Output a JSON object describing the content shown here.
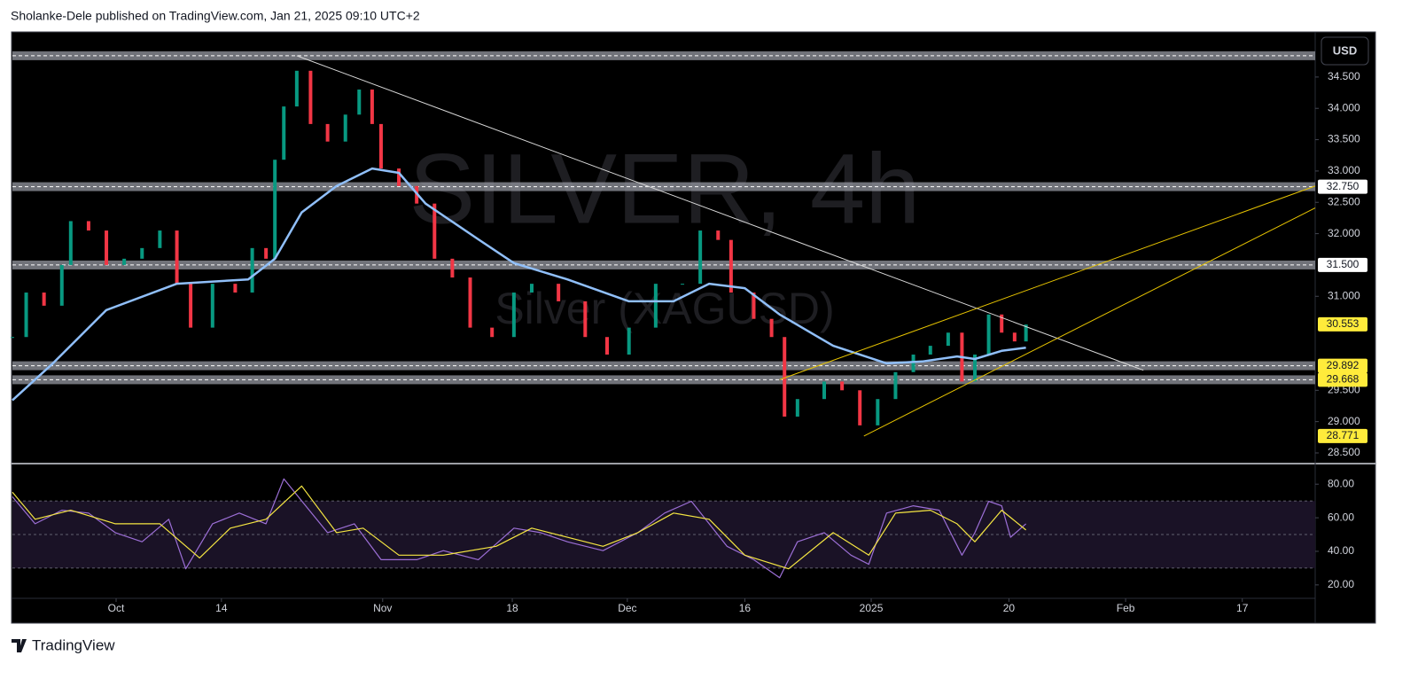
{
  "header": {
    "text": "Sholanke-Dele published on TradingView.com, Jan 21, 2025 09:10 UTC+2"
  },
  "footer": {
    "text": "TradingView"
  },
  "chart_data": [
    {
      "type": "candlestick",
      "title": "SILVER, 4h",
      "subtitle": "Silver (XAGUSD)",
      "currency": "USD",
      "x": [
        -12.8,
        -11.1,
        -8.9,
        -6.7,
        -5.6,
        -3.4,
        -1.2,
        1.0,
        3.2,
        5.4,
        7.5,
        9.2,
        11.9,
        14.7,
        16.8,
        18.5,
        19.6,
        20.7,
        22.3,
        24.0,
        26.1,
        28.3,
        30.0,
        31.6,
        32.7,
        34.9,
        37.1,
        39.3,
        41.5,
        43.7,
        46.4,
        49.1,
        51.3,
        54.6,
        57.9,
        60.6,
        63.3,
        66.6,
        69.9,
        72.1,
        74.3,
        75.9,
        78.7,
        80.9,
        82.5,
        84.1,
        87.4,
        89.6,
        91.8,
        94.0,
        96.2,
        98.4,
        100.5,
        102.7,
        104.4,
        106.0,
        107.7,
        109.3,
        110.9,
        112.3
      ],
      "values": [
        30.35,
        31.06,
        30.85,
        31.5,
        32.2,
        32.05,
        31.5,
        31.6,
        31.77,
        32.05,
        31.2,
        30.5,
        31.2,
        31.06,
        31.77,
        31.6,
        33.18,
        34.03,
        34.6,
        33.75,
        33.47,
        33.9,
        34.3,
        33.75,
        33.04,
        32.76,
        32.48,
        31.6,
        31.3,
        30.5,
        30.35,
        31.06,
        31.2,
        30.92,
        30.35,
        30.07,
        30.5,
        31.2,
        31.2,
        32.05,
        31.9,
        31.06,
        30.64,
        30.35,
        29.08,
        29.36,
        29.64,
        29.5,
        28.94,
        29.36,
        29.79,
        30.07,
        30.21,
        30.42,
        29.64,
        30.07,
        30.71,
        30.42,
        30.28,
        30.55
      ],
      "up_color": "#089981",
      "down_color": "#f23645",
      "series": [
        {
          "color": "#90bff9",
          "x": [
            -12.8,
            -7.8,
            -1.2,
            7.5,
            16.3,
            19.6,
            22.9,
            27.2,
            31.6,
            34.9,
            38.2,
            44.7,
            49.1,
            55.7,
            63.3,
            68.8,
            73.2,
            77.6,
            81.9,
            88.5,
            95.1,
            99.5,
            103.8,
            106.0,
            109.3,
            112.3
          ],
          "values": [
            29.34,
            29.93,
            30.78,
            31.2,
            31.27,
            31.6,
            32.34,
            32.76,
            33.04,
            32.97,
            32.48,
            31.91,
            31.53,
            31.27,
            30.92,
            30.92,
            31.2,
            31.13,
            30.71,
            30.21,
            29.93,
            29.96,
            30.04,
            30.0,
            30.13,
            30.18
          ]
        }
      ],
      "trendlines": [
        {
          "color": "#d9d9d9",
          "x": [
            22.3,
            126.8
          ],
          "values": [
            34.84,
            29.82
          ]
        },
        {
          "color": "#e6c300",
          "x": [
            81.9,
            148
          ],
          "values": [
            29.67,
            32.76
          ]
        },
        {
          "color": "#e6c300",
          "x": [
            92.3,
            148
          ],
          "values": [
            28.77,
            32.41
          ]
        }
      ],
      "levels": [
        34.84,
        32.75,
        31.5,
        29.892,
        29.668
      ],
      "level_labels": [
        null,
        "32.750",
        "31.500",
        "29.892",
        "29.668"
      ],
      "level_label_colors": [
        null,
        "#ffffff",
        "#ffffff",
        "#ffeb3b",
        "#ffeb3b"
      ],
      "level_color": "#9598a1",
      "price_marks": [
        {
          "value": 30.553,
          "label": "30.553"
        },
        {
          "value": 28.771,
          "label": "28.771"
        }
      ],
      "price_mark_color": "#ffeb3b",
      "xlim": [
        -12.8,
        148
      ],
      "ylim": [
        28.344,
        35.22
      ],
      "yticks": [
        {
          "value": 28.5,
          "label": "28.500"
        },
        {
          "value": 29.0,
          "label": "29.000"
        },
        {
          "value": 29.5,
          "label": "29.500"
        },
        {
          "value": 31.0,
          "label": "31.000"
        },
        {
          "value": 32.0,
          "label": "32.000"
        },
        {
          "value": 32.5,
          "label": "32.500"
        },
        {
          "value": 33.0,
          "label": "33.000"
        },
        {
          "value": 33.5,
          "label": "33.500"
        },
        {
          "value": 34.0,
          "label": "34.000"
        },
        {
          "value": 34.5,
          "label": "34.500"
        }
      ],
      "xticks": [
        {
          "value": 0,
          "label": "Oct"
        },
        {
          "value": 13,
          "label": "14"
        },
        {
          "value": 32.9,
          "label": "Nov"
        },
        {
          "value": 48.9,
          "label": "18"
        },
        {
          "value": 63.1,
          "label": "Dec"
        },
        {
          "value": 77.6,
          "label": "16"
        },
        {
          "value": 93.2,
          "label": "2025"
        },
        {
          "value": 110.2,
          "label": "20"
        },
        {
          "value": 124.6,
          "label": "Feb"
        },
        {
          "value": 139,
          "label": "17"
        }
      ]
    },
    {
      "type": "line",
      "series": [
        {
          "color": "#9c6fd6",
          "x": [
            -12.8,
            -10.0,
            -6.7,
            -3.4,
            -0.1,
            3.2,
            6.5,
            8.6,
            11.9,
            15.2,
            18.5,
            20.7,
            23.4,
            26.1,
            29.4,
            32.7,
            37.1,
            40.4,
            44.7,
            49.1,
            52.4,
            55.7,
            60.1,
            64.4,
            67.7,
            71.0,
            73.2,
            75.4,
            78.7,
            81.9,
            84.1,
            87.4,
            90.7,
            92.9,
            95.1,
            98.4,
            101.6,
            104.4,
            106.0,
            107.7,
            109.3,
            110.4,
            112.3
          ],
          "values": [
            72.5,
            56.4,
            64.5,
            62.8,
            51.1,
            45.7,
            59.1,
            29.6,
            56.4,
            62.8,
            56.4,
            83.2,
            67.1,
            51.1,
            56.4,
            35,
            35,
            40.4,
            35,
            53.8,
            51.1,
            45.7,
            40.4,
            51.1,
            62.8,
            69.8,
            56.4,
            43,
            35,
            24.3,
            45.7,
            51.1,
            37.7,
            32.3,
            62.8,
            67.1,
            64.5,
            37.7,
            51.1,
            69.8,
            67.1,
            48.4,
            56.4
          ]
        },
        {
          "color": "#f5e642",
          "x": [
            -12.8,
            -10.0,
            -5.6,
            -0.1,
            5.4,
            10.3,
            14.1,
            18.5,
            22.9,
            27.2,
            30.5,
            34.9,
            40.4,
            46.9,
            51.3,
            55.7,
            60.1,
            64.4,
            68.8,
            73.2,
            77.6,
            83.0,
            88.5,
            92.9,
            96.2,
            100.5,
            103.8,
            106.0,
            109.3,
            112.3
          ],
          "values": [
            75.2,
            59.1,
            64.5,
            56.4,
            56.4,
            36.1,
            53.8,
            59.1,
            78.9,
            51.1,
            53.8,
            37.7,
            37.7,
            43,
            53.8,
            48.4,
            43,
            51.1,
            62.8,
            59.1,
            37.7,
            29.6,
            51.1,
            37.7,
            62.8,
            64.5,
            56.4,
            45.7,
            64.5,
            52.7
          ]
        }
      ],
      "levels": [
        70,
        50,
        30
      ],
      "band_color": "#1a1226",
      "xlim": [
        -12.8,
        148
      ],
      "ylim": [
        12,
        91.2
      ],
      "yticks": [
        {
          "value": 20,
          "label": "20.00"
        },
        {
          "value": 40,
          "label": "40.00"
        },
        {
          "value": 60,
          "label": "60.00"
        },
        {
          "value": 80,
          "label": "80.00"
        }
      ]
    }
  ]
}
